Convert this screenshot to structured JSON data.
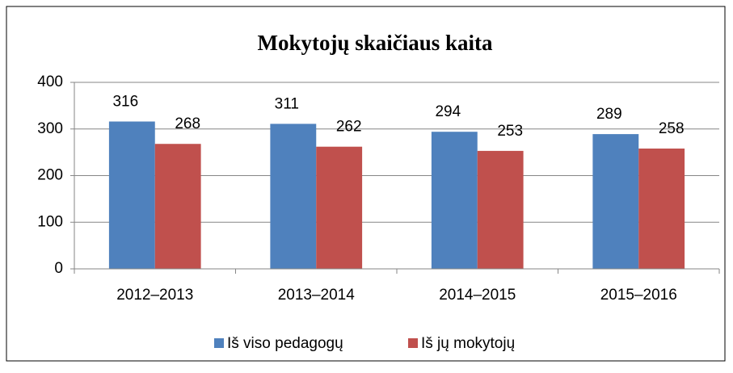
{
  "chart_data": {
    "type": "bar",
    "title": "Mokytojų skaičiaus kaita",
    "categories": [
      "2012–2013",
      "2013–2014",
      "2014–2015",
      "2015–2016"
    ],
    "series": [
      {
        "name": "Iš viso pedagogų",
        "color": "#4f81bd",
        "values": [
          316,
          311,
          294,
          289
        ]
      },
      {
        "name": "Iš jų mokytojų",
        "color": "#c0504d",
        "values": [
          268,
          262,
          253,
          258
        ]
      }
    ],
    "ylim": [
      0,
      400
    ],
    "yticks": [
      0,
      100,
      200,
      300,
      400
    ],
    "grid": true,
    "legend": "bottom"
  }
}
